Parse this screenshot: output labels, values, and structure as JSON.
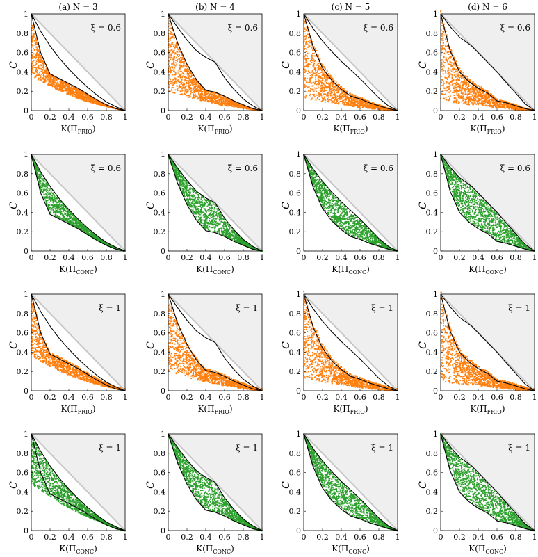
{
  "colors": {
    "frio": "#ff7f0e",
    "conc": "#2ca02c",
    "shade": "#efefef",
    "diag": "#c6c6c6",
    "curve": "#000000"
  },
  "chart_data": {
    "type": "scatter",
    "layout": "4x4 grid",
    "column_titles": [
      "(a) N = 3",
      "(b) N = 4",
      "(c) N = 5",
      "(d) N = 6"
    ],
    "N": [
      3,
      4,
      5,
      6
    ],
    "ylabel": "C",
    "xlabel_frio": "K(Π_FRIO)",
    "xlabel_conc": "K(Π_CONC)",
    "xlim": [
      0,
      1
    ],
    "ylim": [
      0,
      1
    ],
    "xticks": [
      "0",
      "0.2",
      "0.4",
      "0.6",
      "0.8",
      "1"
    ],
    "yticks": [
      "0",
      "0.2",
      "0.4",
      "0.6",
      "0.8",
      "1"
    ],
    "rows": [
      {
        "xi_label": "ξ = 0.6",
        "xi": 0.6,
        "ensemble": "FRIO",
        "xlabel_main": "K(Π",
        "xlabel_sub": "FRIO"
      },
      {
        "xi_label": "ξ = 0.6",
        "xi": 0.6,
        "ensemble": "CONC",
        "xlabel_main": "K(Π",
        "xlabel_sub": "CONC"
      },
      {
        "xi_label": "ξ = 1",
        "xi": 1,
        "ensemble": "FRIO",
        "xlabel_main": "K(Π",
        "xlabel_sub": "FRIO"
      },
      {
        "xi_label": "ξ = 1",
        "xi": 1,
        "ensemble": "CONC",
        "xlabel_main": "K(Π",
        "xlabel_sub": "CONC"
      }
    ],
    "upper_bound_curves": {
      "N3": [
        [
          0,
          1
        ],
        [
          0.1,
          0.82
        ],
        [
          0.2,
          0.67
        ],
        [
          0.3,
          0.54
        ],
        [
          0.4,
          0.43
        ],
        [
          0.5,
          0.33
        ],
        [
          0.6,
          0.24
        ],
        [
          0.7,
          0.16
        ],
        [
          0.8,
          0.09
        ],
        [
          0.9,
          0.04
        ],
        [
          1,
          0
        ]
      ],
      "N4": [
        [
          0,
          1
        ],
        [
          0.1,
          0.86
        ],
        [
          0.2,
          0.73
        ],
        [
          0.3,
          0.62
        ],
        [
          0.4,
          0.55
        ],
        [
          0.5,
          0.5
        ],
        [
          0.6,
          0.34
        ],
        [
          0.7,
          0.22
        ],
        [
          0.8,
          0.12
        ],
        [
          0.9,
          0.05
        ],
        [
          1,
          0
        ]
      ],
      "N5": [
        [
          0,
          1
        ],
        [
          0.1,
          0.85
        ],
        [
          0.2,
          0.72
        ],
        [
          0.3,
          0.61
        ],
        [
          0.4,
          0.51
        ],
        [
          0.5,
          0.42
        ],
        [
          0.6,
          0.33
        ],
        [
          0.7,
          0.23
        ],
        [
          0.8,
          0.13
        ],
        [
          0.9,
          0.05
        ],
        [
          1,
          0
        ]
      ],
      "N6": [
        [
          0,
          1
        ],
        [
          0.1,
          0.87
        ],
        [
          0.2,
          0.76
        ],
        [
          0.33,
          0.67
        ],
        [
          0.4,
          0.6
        ],
        [
          0.5,
          0.5
        ],
        [
          0.6,
          0.4
        ],
        [
          0.67,
          0.32
        ],
        [
          0.8,
          0.18
        ],
        [
          0.9,
          0.07
        ],
        [
          1,
          0
        ]
      ]
    },
    "lower_bound_curves": {
      "N3": [
        [
          0,
          1
        ],
        [
          0.1,
          0.6
        ],
        [
          0.2,
          0.38
        ],
        [
          0.3,
          0.33
        ],
        [
          0.4,
          0.28
        ],
        [
          0.5,
          0.23
        ],
        [
          0.6,
          0.17
        ],
        [
          0.7,
          0.11
        ],
        [
          0.8,
          0.06
        ],
        [
          0.9,
          0.02
        ],
        [
          1,
          0
        ]
      ],
      "N4": [
        [
          0,
          1
        ],
        [
          0.1,
          0.7
        ],
        [
          0.2,
          0.48
        ],
        [
          0.3,
          0.32
        ],
        [
          0.4,
          0.21
        ],
        [
          0.5,
          0.19
        ],
        [
          0.6,
          0.15
        ],
        [
          0.7,
          0.1
        ],
        [
          0.8,
          0.06
        ],
        [
          0.9,
          0.02
        ],
        [
          1,
          0
        ]
      ],
      "N5": [
        [
          0,
          1
        ],
        [
          0.1,
          0.66
        ],
        [
          0.2,
          0.44
        ],
        [
          0.3,
          0.31
        ],
        [
          0.4,
          0.22
        ],
        [
          0.5,
          0.15
        ],
        [
          0.6,
          0.12
        ],
        [
          0.7,
          0.08
        ],
        [
          0.8,
          0.05
        ],
        [
          0.9,
          0.02
        ],
        [
          1,
          0
        ]
      ],
      "N6": [
        [
          0,
          1
        ],
        [
          0.1,
          0.62
        ],
        [
          0.2,
          0.4
        ],
        [
          0.3,
          0.3
        ],
        [
          0.4,
          0.23
        ],
        [
          0.5,
          0.18
        ],
        [
          0.6,
          0.1
        ],
        [
          0.7,
          0.08
        ],
        [
          0.8,
          0.05
        ],
        [
          0.9,
          0.02
        ],
        [
          1,
          0
        ]
      ]
    },
    "frio_region_bottom": {
      "N3": [
        [
          0,
          0.36
        ],
        [
          0.2,
          0.25
        ],
        [
          0.4,
          0.16
        ],
        [
          0.6,
          0.09
        ],
        [
          0.8,
          0.04
        ],
        [
          1,
          0
        ]
      ],
      "N4": [
        [
          0,
          0.2
        ],
        [
          0.2,
          0.14
        ],
        [
          0.4,
          0.09
        ],
        [
          0.6,
          0.05
        ],
        [
          0.8,
          0.02
        ],
        [
          1,
          0
        ]
      ],
      "N5": [
        [
          0,
          0.12
        ],
        [
          0.2,
          0.09
        ],
        [
          0.4,
          0.06
        ],
        [
          0.6,
          0.03
        ],
        [
          0.8,
          0.01
        ],
        [
          1,
          0
        ]
      ],
      "N6": [
        [
          0,
          0.09
        ],
        [
          0.2,
          0.07
        ],
        [
          0.4,
          0.05
        ],
        [
          0.6,
          0.03
        ],
        [
          0.8,
          0.01
        ],
        [
          1,
          0
        ]
      ]
    }
  }
}
